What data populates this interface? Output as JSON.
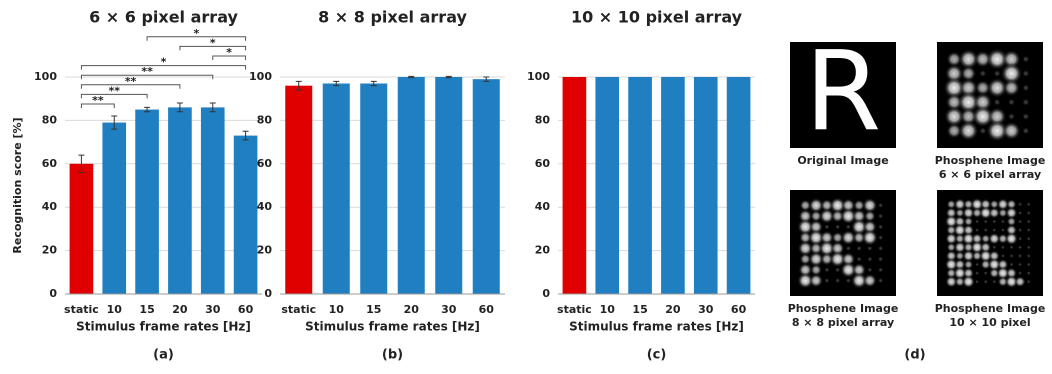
{
  "chart_data": [
    {
      "type": "bar",
      "panel_label": "(a)",
      "title": "6 × 6 pixel array",
      "ylabel": "Recognition score [%]",
      "xlabel": "Stimulus frame rates [Hz]",
      "categories": [
        "static",
        "10",
        "15",
        "20",
        "30",
        "60"
      ],
      "values": [
        60,
        79,
        85,
        86,
        86,
        73
      ],
      "errors": [
        4,
        3,
        1,
        2,
        2,
        2
      ],
      "colors": [
        "#e00000",
        "#1f7fc1",
        "#1f7fc1",
        "#1f7fc1",
        "#1f7fc1",
        "#1f7fc1"
      ],
      "ylim": [
        0,
        100
      ],
      "yticks": [
        0,
        20,
        40,
        60,
        80,
        100
      ],
      "grid": true,
      "significance": [
        {
          "pair": [
            0,
            1
          ],
          "label": "**"
        },
        {
          "pair": [
            0,
            2
          ],
          "label": "**"
        },
        {
          "pair": [
            0,
            3
          ],
          "label": "**"
        },
        {
          "pair": [
            0,
            4
          ],
          "label": "**"
        },
        {
          "pair": [
            0,
            5
          ],
          "label": "*"
        },
        {
          "pair": [
            4,
            5
          ],
          "label": "*"
        },
        {
          "pair": [
            3,
            5
          ],
          "label": "*"
        },
        {
          "pair": [
            2,
            5
          ],
          "label": "*"
        }
      ]
    },
    {
      "type": "bar",
      "panel_label": "(b)",
      "title": "8 × 8 pixel array",
      "xlabel": "Stimulus frame rates [Hz]",
      "categories": [
        "static",
        "10",
        "15",
        "20",
        "30",
        "60"
      ],
      "values": [
        96,
        97,
        97,
        100,
        100,
        99
      ],
      "errors": [
        2,
        1,
        1,
        0.3,
        0.3,
        1
      ],
      "colors": [
        "#e00000",
        "#1f7fc1",
        "#1f7fc1",
        "#1f7fc1",
        "#1f7fc1",
        "#1f7fc1"
      ],
      "ylim": [
        0,
        100
      ],
      "yticks": [
        0,
        20,
        40,
        60,
        80,
        100
      ],
      "grid": true
    },
    {
      "type": "bar",
      "panel_label": "(c)",
      "title": "10 × 10 pixel array",
      "xlabel": "Stimulus frame rates [Hz]",
      "categories": [
        "static",
        "10",
        "15",
        "20",
        "30",
        "60"
      ],
      "values": [
        100,
        100,
        100,
        100,
        100,
        100
      ],
      "colors": [
        "#e00000",
        "#1f7fc1",
        "#1f7fc1",
        "#1f7fc1",
        "#1f7fc1",
        "#1f7fc1"
      ],
      "ylim": [
        0,
        100
      ],
      "yticks": [
        0,
        20,
        40,
        60,
        80,
        100
      ],
      "grid": true
    }
  ],
  "images_panel": {
    "panel_label": "(d)",
    "letter": "R",
    "images": [
      {
        "caption": [
          "Original Image"
        ]
      },
      {
        "caption": [
          "Phosphene Image",
          "6 × 6 pixel array"
        ],
        "grid": 6
      },
      {
        "caption": [
          "Phosphene Image",
          "8 × 8 pixel array"
        ],
        "grid": 8
      },
      {
        "caption": [
          "Phosphene Image",
          "10 × 10 pixel"
        ],
        "grid": 10
      }
    ]
  }
}
